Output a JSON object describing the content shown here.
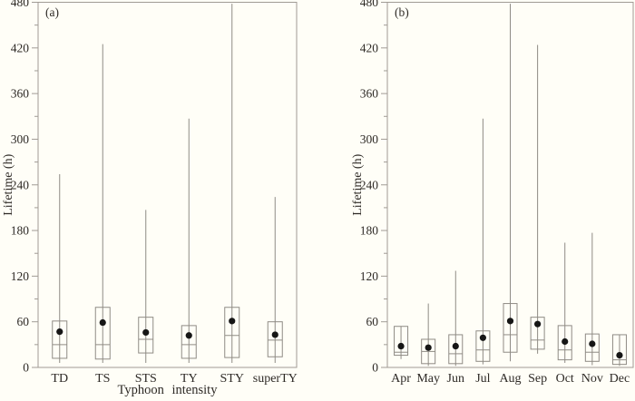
{
  "figure": {
    "background": "#fffef7",
    "line_color": "#8f8b85",
    "frame_color": "#a09b95",
    "text_color": "#2e2a26",
    "dot_color": "#161616"
  },
  "chart_data": [
    {
      "type": "boxplot",
      "panel_label": "(a)",
      "xlabel": "Typhoon intensity",
      "ylabel": "Lifetime (h)",
      "ylim": [
        0,
        480
      ],
      "ytick_interval": 60,
      "yminor_interval": 30,
      "ytick_labels": [
        "0",
        "60",
        "120",
        "180",
        "240",
        "300",
        "360",
        "420",
        "480"
      ],
      "categories": [
        "TD",
        "TS",
        "STS",
        "TY",
        "STY",
        "superTY"
      ],
      "boxes": [
        {
          "category": "TD",
          "whisker_low": 6,
          "q1": 12,
          "median": 30,
          "mean": 47,
          "q3": 61,
          "whisker_high": 254
        },
        {
          "category": "TS",
          "whisker_low": 6,
          "q1": 11,
          "median": 30,
          "mean": 59,
          "q3": 79,
          "whisker_high": 425
        },
        {
          "category": "STS",
          "whisker_low": 6,
          "q1": 19,
          "median": 37,
          "mean": 46,
          "q3": 66,
          "whisker_high": 207
        },
        {
          "category": "TY",
          "whisker_low": 6,
          "q1": 12,
          "median": 30,
          "mean": 42,
          "q3": 55,
          "whisker_high": 327
        },
        {
          "category": "STY",
          "whisker_low": 6,
          "q1": 13,
          "median": 42,
          "mean": 61,
          "q3": 79,
          "whisker_high": 478
        },
        {
          "category": "superTY",
          "whisker_low": 6,
          "q1": 14,
          "median": 36,
          "mean": 43,
          "q3": 60,
          "whisker_high": 224
        }
      ]
    },
    {
      "type": "boxplot",
      "panel_label": "(b)",
      "xlabel": "",
      "ylabel": "Lifetime (h)",
      "ylim": [
        0,
        480
      ],
      "ytick_interval": 60,
      "yminor_interval": 30,
      "ytick_labels": [
        "0",
        "60",
        "120",
        "180",
        "240",
        "300",
        "360",
        "420",
        "480"
      ],
      "categories": [
        "Apr",
        "May",
        "Jun",
        "Jul",
        "Aug",
        "Sep",
        "Oct",
        "Nov",
        "Dec"
      ],
      "boxes": [
        {
          "category": "Apr",
          "whisker_low": 11,
          "q1": 16,
          "median": 20,
          "mean": 28,
          "q3": 54,
          "whisker_high": 54
        },
        {
          "category": "May",
          "whisker_low": 2,
          "q1": 5,
          "median": 21,
          "mean": 26,
          "q3": 37,
          "whisker_high": 84
        },
        {
          "category": "Jun",
          "whisker_low": 2,
          "q1": 5,
          "median": 18,
          "mean": 28,
          "q3": 43,
          "whisker_high": 127
        },
        {
          "category": "Jul",
          "whisker_low": 4,
          "q1": 8,
          "median": 23,
          "mean": 39,
          "q3": 48,
          "whisker_high": 327
        },
        {
          "category": "Aug",
          "whisker_low": 8,
          "q1": 20,
          "median": 43,
          "mean": 61,
          "q3": 84,
          "whisker_high": 478
        },
        {
          "category": "Sep",
          "whisker_low": 18,
          "q1": 24,
          "median": 36,
          "mean": 57,
          "q3": 66,
          "whisker_high": 424
        },
        {
          "category": "Oct",
          "whisker_low": 6,
          "q1": 10,
          "median": 23,
          "mean": 34,
          "q3": 55,
          "whisker_high": 164
        },
        {
          "category": "Nov",
          "whisker_low": 3,
          "q1": 8,
          "median": 20,
          "mean": 31,
          "q3": 44,
          "whisker_high": 177
        },
        {
          "category": "Dec",
          "whisker_low": 2,
          "q1": 4,
          "median": 10,
          "mean": 16,
          "q3": 43,
          "whisker_high": 43
        }
      ]
    }
  ]
}
